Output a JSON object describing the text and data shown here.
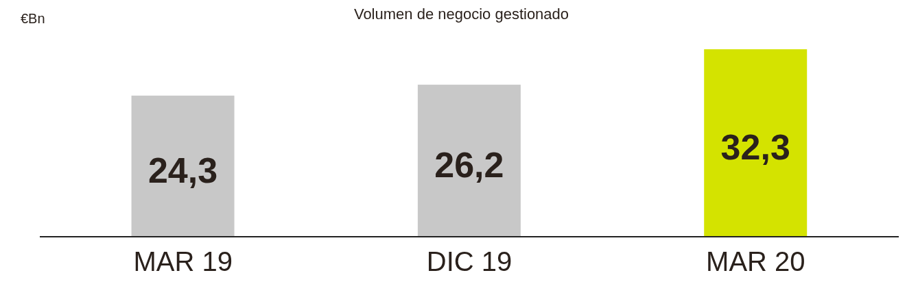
{
  "chart_data": {
    "type": "bar",
    "title": "Volumen de negocio gestionado",
    "ylabel": "€Bn",
    "categories": [
      "MAR 19",
      "DIC 19",
      "MAR 20"
    ],
    "values": [
      24.3,
      26.2,
      32.3
    ],
    "colors": [
      "#c8c8c8",
      "#c8c8c8",
      "#d4e300"
    ],
    "value_labels": [
      "24,3",
      "26,2",
      "32,3"
    ]
  }
}
